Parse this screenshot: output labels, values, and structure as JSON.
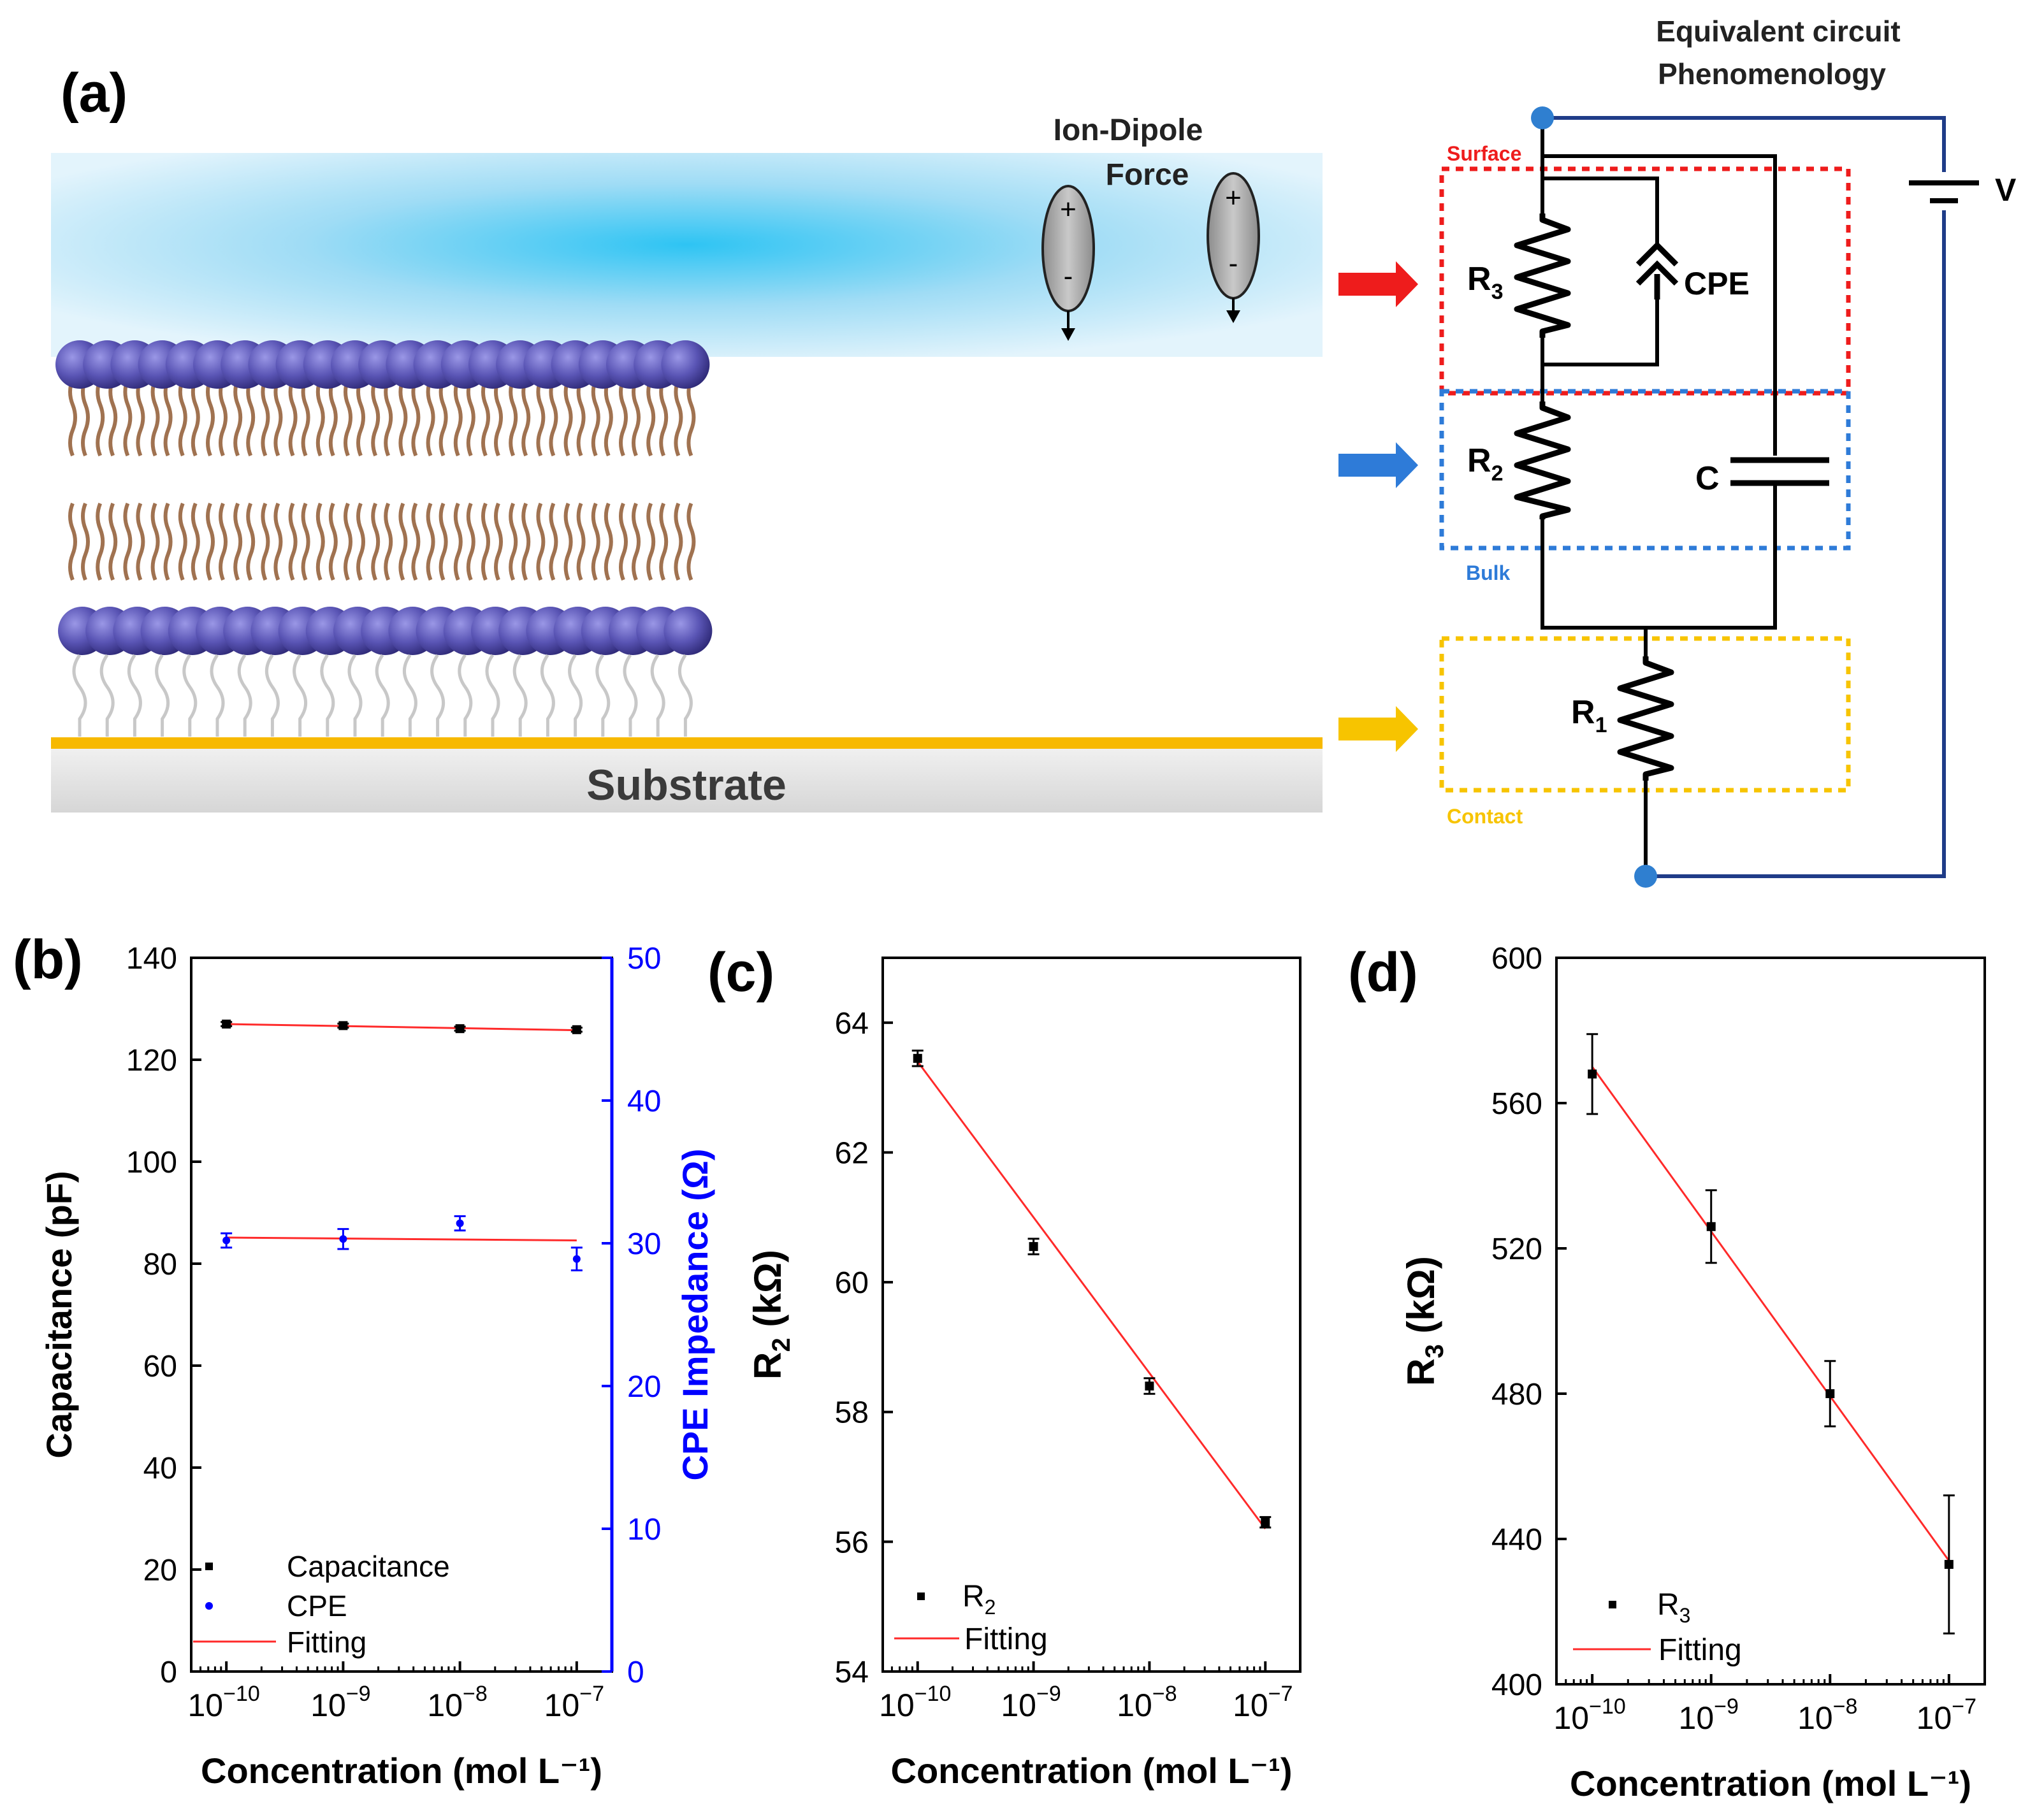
{
  "panel_a": {
    "label": "(a)",
    "substrate_label": "Substrate",
    "force_label_line1": "Ion-Dipole",
    "force_label_line2": "Force",
    "dipole_plus": "+",
    "dipole_minus": "-",
    "circuit_title_line1": "Equivalent circuit",
    "circuit_title_line2": "Phenomenology",
    "region_surface": "Surface",
    "region_bulk": "Bulk",
    "region_contact": "Contact",
    "r3_letter": "R",
    "r3_sub": "3",
    "r2_letter": "R",
    "r2_sub": "2",
    "r1_letter": "R",
    "r1_sub": "1",
    "cpe_label": "CPE",
    "c_label": "C",
    "v_label": "V",
    "colors": {
      "surface": "#ee1c1c",
      "bulk": "#2e7bd8",
      "contact": "#f7c400",
      "wire": "#000000",
      "source_wire": "#1f3c88",
      "node": "#2f7fd0",
      "lipid_head": "#5a55b5",
      "lipid_tail": "#a07250",
      "gold": "#f7b900",
      "substrate": "#e2e2e2"
    }
  },
  "chart_data": [
    {
      "panel": "(b)",
      "type": "scatter",
      "x_scale": "log",
      "xlabel": "Concentration (mol L⁻¹)",
      "xlim": [
        5e-11,
        2e-07
      ],
      "x_ticks": [
        1e-10,
        1e-09,
        1e-08,
        1e-07
      ],
      "x_tick_exponents": [
        "−10",
        "−9",
        "−8",
        "−7"
      ],
      "x_tick_base": "10",
      "ylabel": "Capacitance (pF)",
      "ylim": [
        0,
        140
      ],
      "y_ticks": [
        0,
        20,
        40,
        60,
        80,
        100,
        120,
        140
      ],
      "y_tick_labels": [
        "0",
        "20",
        "40",
        "60",
        "80",
        "100",
        "120",
        "140"
      ],
      "y2label": "CPE Impedance (Ω)",
      "y2lim": [
        0,
        50
      ],
      "y2_ticks": [
        0,
        10,
        20,
        30,
        40,
        50
      ],
      "y2_tick_labels": [
        "0",
        "10",
        "20",
        "30",
        "40",
        "50"
      ],
      "series": [
        {
          "name": "Capacitance",
          "axis": "left",
          "color": "#000000",
          "x": [
            1e-10,
            1e-09,
            1e-08,
            1e-07
          ],
          "y": [
            127.0,
            126.7,
            126.1,
            125.9
          ],
          "err": [
            0.4,
            0.4,
            0.4,
            0.4
          ],
          "fit": [
            127.0,
            125.8
          ]
        },
        {
          "name": "CPE",
          "axis": "right",
          "color": "#0000ff",
          "x": [
            1e-10,
            1e-09,
            1e-08,
            1e-07
          ],
          "y": [
            30.2,
            30.3,
            31.4,
            28.9
          ],
          "err": [
            0.5,
            0.7,
            0.5,
            0.8
          ],
          "fit": [
            30.4,
            30.2
          ]
        }
      ],
      "fit_name": "Fitting",
      "fit_color": "#ff2a2a",
      "legend": [
        "Capacitance",
        "CPE",
        "Fitting"
      ],
      "legend_position": "bottom-left"
    },
    {
      "panel": "(c)",
      "type": "scatter",
      "x_scale": "log",
      "xlabel": "Concentration (mol L⁻¹)",
      "xlim": [
        5e-11,
        2e-07
      ],
      "x_ticks": [
        1e-10,
        1e-09,
        1e-08,
        1e-07
      ],
      "x_tick_exponents": [
        "−10",
        "−9",
        "−8",
        "−7"
      ],
      "x_tick_base": "10",
      "ylabel_main": "R",
      "ylabel_sub": "2",
      "ylabel_unit": " (kΩ)",
      "ylim": [
        54,
        65
      ],
      "y_ticks": [
        54,
        56,
        58,
        60,
        62,
        64
      ],
      "y_tick_labels": [
        "54",
        "56",
        "58",
        "60",
        "62",
        "64"
      ],
      "series": [
        {
          "name": "R₂",
          "color": "#000000",
          "x": [
            1e-10,
            1e-09,
            1e-08,
            1e-07
          ],
          "y": [
            63.45,
            60.55,
            58.4,
            56.3
          ],
          "err": [
            0.12,
            0.12,
            0.12,
            0.08
          ],
          "fit": [
            63.4,
            56.2
          ]
        }
      ],
      "fit_name": "Fitting",
      "fit_color": "#ff2a2a",
      "legend_symbol_label": "R",
      "legend_symbol_sub": "2",
      "legend_position": "bottom-left"
    },
    {
      "panel": "(d)",
      "type": "scatter",
      "x_scale": "log",
      "xlabel": "Concentration (mol L⁻¹)",
      "xlim": [
        5e-11,
        2e-07
      ],
      "x_ticks": [
        1e-10,
        1e-09,
        1e-08,
        1e-07
      ],
      "x_tick_exponents": [
        "−10",
        "−9",
        "−8",
        "−7"
      ],
      "x_tick_base": "10",
      "ylabel_main": "R",
      "ylabel_sub": "3",
      "ylabel_unit": " (kΩ)",
      "ylim": [
        400,
        600
      ],
      "y_ticks": [
        400,
        440,
        480,
        520,
        560,
        600
      ],
      "y_tick_labels": [
        "400",
        "440",
        "480",
        "520",
        "560",
        "600"
      ],
      "series": [
        {
          "name": "R₃",
          "color": "#000000",
          "x": [
            1e-10,
            1e-09,
            1e-08,
            1e-07
          ],
          "y": [
            568,
            526,
            480,
            433
          ],
          "err": [
            11,
            10,
            9,
            19
          ],
          "fit": [
            570,
            434
          ]
        }
      ],
      "fit_name": "Fitting",
      "fit_color": "#ff2a2a",
      "legend_symbol_label": "R",
      "legend_symbol_sub": "3",
      "legend_position": "bottom-left"
    }
  ]
}
